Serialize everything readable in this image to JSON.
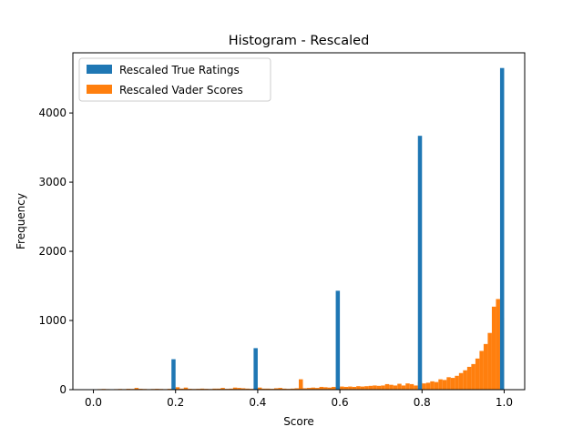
{
  "chart_data": {
    "type": "bar",
    "title": "Histogram - Rescaled",
    "xlabel": "Score",
    "ylabel": "Frequency",
    "xlim": [
      -0.05,
      1.05
    ],
    "ylim": [
      0,
      4870
    ],
    "xticks": [
      0.0,
      0.2,
      0.4,
      0.6,
      0.8,
      1.0
    ],
    "xtick_labels": [
      "0.0",
      "0.2",
      "0.4",
      "0.6",
      "0.8",
      "1.0"
    ],
    "yticks": [
      0,
      1000,
      2000,
      3000,
      4000
    ],
    "ytick_labels": [
      "0",
      "1000",
      "2000",
      "3000",
      "4000"
    ],
    "grid": false,
    "legend_position": "top-left",
    "bin_width": 0.01,
    "colors": {
      "true_ratings": "#1f77b4",
      "vader_scores": "#ff7f0e"
    },
    "series": [
      {
        "name": "Rescaled True Ratings",
        "x": [
          0.2,
          0.4,
          0.6,
          0.8,
          1.0
        ],
        "values": [
          440,
          600,
          1430,
          3670,
          4650
        ]
      },
      {
        "name": "Rescaled Vader Scores",
        "x": [
          0.0,
          0.01,
          0.02,
          0.03,
          0.04,
          0.05,
          0.06,
          0.07,
          0.08,
          0.09,
          0.1,
          0.11,
          0.12,
          0.13,
          0.14,
          0.15,
          0.16,
          0.17,
          0.18,
          0.19,
          0.2,
          0.21,
          0.22,
          0.23,
          0.24,
          0.25,
          0.26,
          0.27,
          0.28,
          0.29,
          0.3,
          0.31,
          0.32,
          0.33,
          0.34,
          0.35,
          0.36,
          0.37,
          0.38,
          0.39,
          0.4,
          0.41,
          0.42,
          0.43,
          0.44,
          0.45,
          0.46,
          0.47,
          0.48,
          0.49,
          0.5,
          0.51,
          0.52,
          0.53,
          0.54,
          0.55,
          0.56,
          0.57,
          0.58,
          0.59,
          0.6,
          0.61,
          0.62,
          0.63,
          0.64,
          0.65,
          0.66,
          0.67,
          0.68,
          0.69,
          0.7,
          0.71,
          0.72,
          0.73,
          0.74,
          0.75,
          0.76,
          0.77,
          0.78,
          0.79,
          0.8,
          0.81,
          0.82,
          0.83,
          0.84,
          0.85,
          0.86,
          0.87,
          0.88,
          0.89,
          0.9,
          0.91,
          0.92,
          0.93,
          0.94,
          0.95,
          0.96,
          0.97,
          0.98,
          0.99
        ],
        "values": [
          5,
          8,
          10,
          8,
          6,
          8,
          10,
          8,
          12,
          10,
          25,
          12,
          10,
          8,
          10,
          12,
          10,
          8,
          12,
          10,
          35,
          15,
          30,
          12,
          10,
          12,
          15,
          12,
          10,
          15,
          15,
          25,
          12,
          15,
          30,
          25,
          20,
          15,
          12,
          25,
          30,
          15,
          15,
          12,
          20,
          25,
          15,
          12,
          15,
          20,
          150,
          20,
          25,
          30,
          25,
          40,
          35,
          30,
          40,
          30,
          45,
          40,
          45,
          40,
          50,
          45,
          50,
          55,
          60,
          55,
          60,
          80,
          70,
          60,
          85,
          60,
          90,
          80,
          60,
          110,
          90,
          100,
          120,
          110,
          150,
          140,
          180,
          170,
          200,
          240,
          280,
          330,
          370,
          450,
          560,
          660,
          820,
          1200,
          1310,
          1040
        ]
      }
    ]
  }
}
